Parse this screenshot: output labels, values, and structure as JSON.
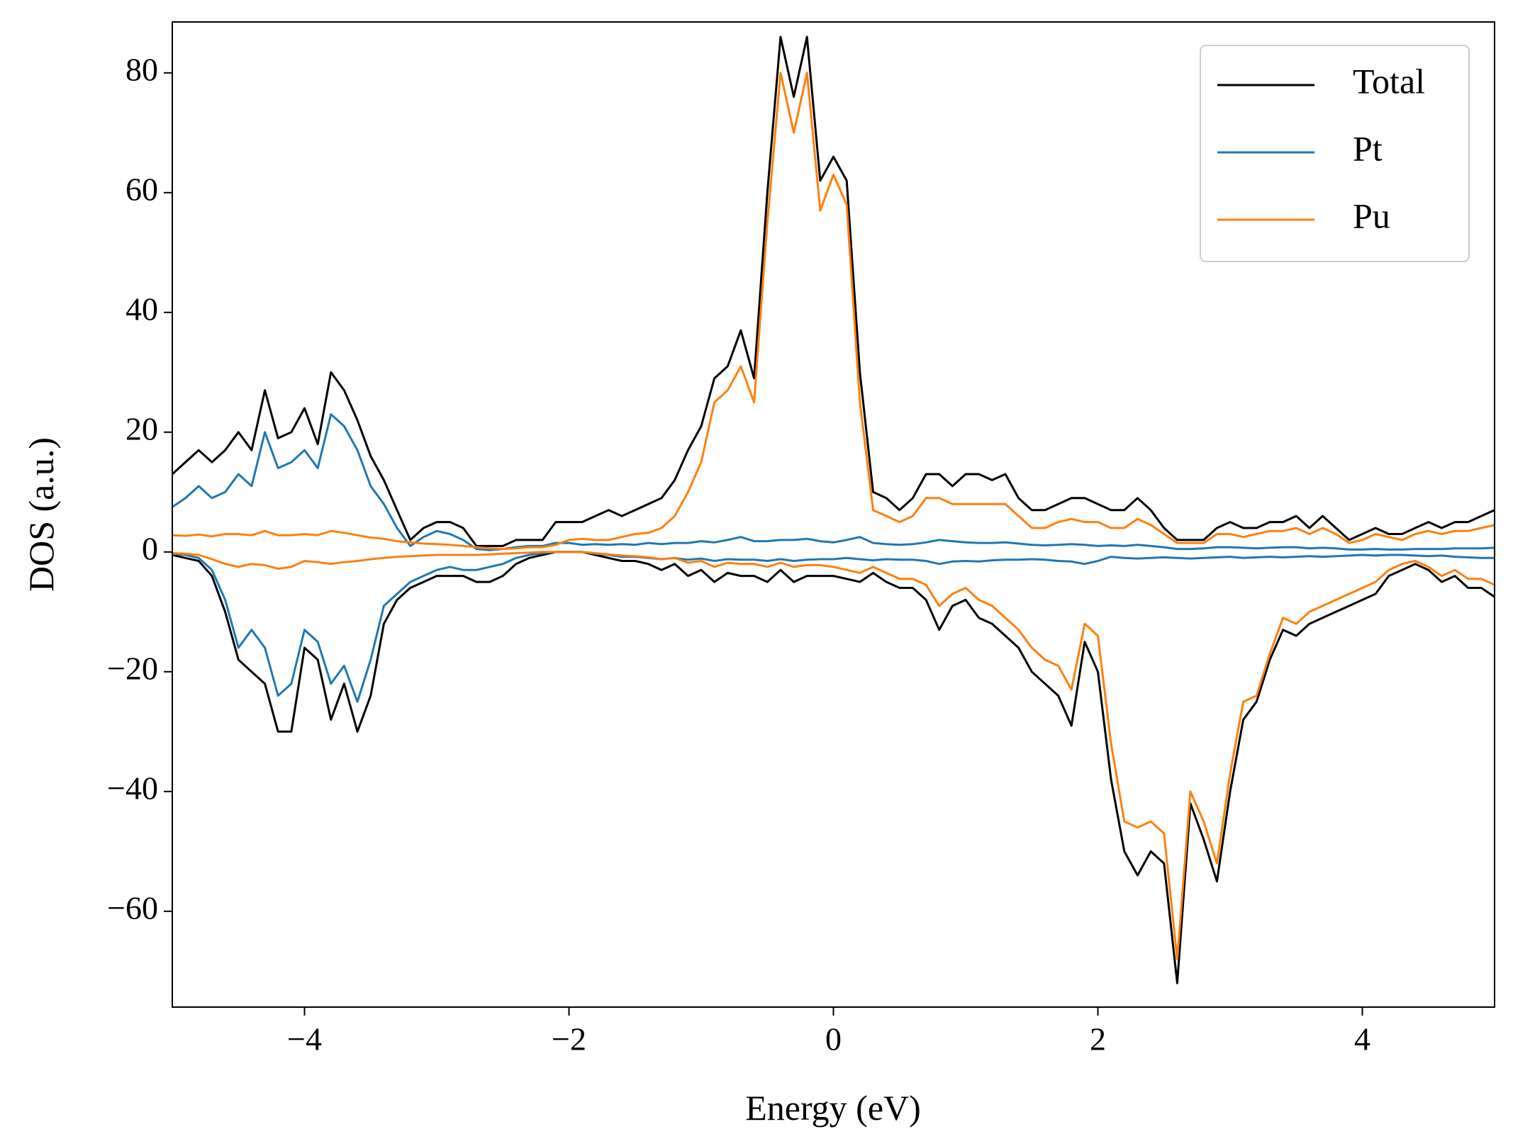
{
  "chart_data": {
    "type": "line",
    "x_label": "Energy (eV)",
    "y_label": "DOS (a.u.)",
    "x": [
      -5,
      -4.9,
      -4.8,
      -4.7,
      -4.6,
      -4.5,
      -4.4,
      -4.3,
      -4.2,
      -4.1,
      -4,
      -3.9,
      -3.8,
      -3.7,
      -3.6,
      -3.5,
      -3.4,
      -3.3,
      -3.2,
      -3.1,
      -3,
      -2.9,
      -2.8,
      -2.7,
      -2.6,
      -2.5,
      -2.4,
      -2.3,
      -2.2,
      -2.1,
      -2,
      -1.9,
      -1.8,
      -1.7,
      -1.6,
      -1.5,
      -1.4,
      -1.3,
      -1.2,
      -1.1,
      -1,
      -0.9,
      -0.8,
      -0.7,
      -0.6,
      -0.5,
      -0.4,
      -0.3,
      -0.2,
      -0.1,
      0,
      0.1,
      0.2,
      0.3,
      0.4,
      0.5,
      0.6,
      0.7,
      0.8,
      0.9,
      1,
      1.1,
      1.2,
      1.3,
      1.4,
      1.5,
      1.6,
      1.7,
      1.8,
      1.9,
      2,
      2.1,
      2.2,
      2.3,
      2.4,
      2.5,
      2.6,
      2.7,
      2.8,
      2.9,
      3,
      3.1,
      3.2,
      3.3,
      3.4,
      3.5,
      3.6,
      3.7,
      3.8,
      3.9,
      4,
      4.1,
      4.2,
      4.3,
      4.4,
      4.5,
      4.6,
      4.7,
      4.8,
      4.9,
      5
    ],
    "series": [
      {
        "name": "Total",
        "color": "#000000",
        "values": [
          13,
          15,
          17,
          15,
          17,
          20,
          17,
          27,
          19,
          20,
          24,
          18,
          30,
          27,
          22,
          16,
          12,
          7,
          2,
          4,
          5,
          5,
          4,
          1,
          1,
          1,
          2,
          2,
          2,
          5,
          5,
          5,
          6,
          7,
          6,
          7,
          8,
          9,
          12,
          17,
          21,
          29,
          31,
          37,
          29,
          60,
          86,
          76,
          86,
          62,
          66,
          62,
          30,
          10,
          9,
          7,
          9,
          13,
          13,
          11,
          13,
          13,
          12,
          13,
          9,
          7,
          7,
          8,
          9,
          9,
          8,
          7,
          7,
          9,
          7,
          4,
          2,
          2,
          2,
          4,
          5,
          4,
          4,
          5,
          5,
          6,
          4,
          6,
          4,
          2,
          3,
          4,
          3,
          3,
          4,
          5,
          4,
          5,
          5,
          6,
          7
        ],
        "values_down": [
          -0.5,
          -1,
          -1.5,
          -4,
          -10,
          -18,
          -20,
          -22,
          -30,
          -30,
          -16,
          -18,
          -28,
          -22,
          -30,
          -24,
          -12,
          -8,
          -6,
          -5,
          -4,
          -4,
          -4,
          -5,
          -5,
          -4,
          -2,
          -1,
          -0.5,
          0,
          0,
          0,
          -0.5,
          -1,
          -1.5,
          -1.5,
          -2,
          -3,
          -2,
          -4,
          -3,
          -5,
          -3.5,
          -4,
          -4,
          -5,
          -3,
          -5,
          -4,
          -4,
          -4,
          -4.5,
          -5,
          -3.5,
          -5,
          -6,
          -6,
          -8,
          -13,
          -9,
          -8,
          -11,
          -12,
          -14,
          -16,
          -20,
          -22,
          -24,
          -29,
          -15,
          -20,
          -38,
          -50,
          -54,
          -50,
          -52,
          -72,
          -42,
          -48,
          -55,
          -40,
          -28,
          -25,
          -18,
          -13,
          -14,
          -12,
          -11,
          -10,
          -9,
          -8,
          -7,
          -4,
          -3,
          -2,
          -3,
          -5,
          -4,
          -6,
          -6,
          -7.5
        ]
      },
      {
        "name": "Pt",
        "color": "#1f77b4",
        "values": [
          7.5,
          9,
          11,
          9,
          10,
          13,
          11,
          20,
          14,
          15,
          17,
          14,
          23,
          21,
          17,
          11,
          8,
          4,
          1,
          2.5,
          3.5,
          3,
          2,
          0.5,
          0.3,
          0.5,
          0.8,
          1,
          1,
          1.5,
          1.5,
          1.2,
          1.3,
          1.2,
          1.3,
          1.2,
          1.5,
          1.3,
          1.5,
          1.5,
          1.8,
          1.6,
          2,
          2.5,
          1.8,
          1.8,
          2,
          2,
          2.2,
          1.8,
          1.6,
          2,
          2.5,
          1.5,
          1.3,
          1.2,
          1.3,
          1.6,
          2,
          1.8,
          1.6,
          1.5,
          1.5,
          1.6,
          1.4,
          1.2,
          1.1,
          1.2,
          1.3,
          1.2,
          1,
          1.1,
          1,
          1.2,
          1,
          0.8,
          0.5,
          0.5,
          0.6,
          0.8,
          0.8,
          0.7,
          0.6,
          0.7,
          0.8,
          0.8,
          0.6,
          0.7,
          0.6,
          0.4,
          0.4,
          0.5,
          0.4,
          0.4,
          0.5,
          0.5,
          0.5,
          0.6,
          0.6,
          0.6,
          0.7
        ],
        "values_down": [
          -0.3,
          -0.5,
          -1,
          -3,
          -8,
          -16,
          -13,
          -16,
          -24,
          -22,
          -13,
          -15,
          -22,
          -19,
          -25,
          -18,
          -9,
          -7,
          -5,
          -4,
          -3,
          -2.5,
          -3,
          -3,
          -2.5,
          -2,
          -1,
          -0.5,
          -0.2,
          0,
          0,
          0,
          -0.3,
          -0.5,
          -0.8,
          -0.8,
          -1,
          -1.2,
          -1,
          -1.3,
          -1.1,
          -1.5,
          -1.2,
          -1.3,
          -1.3,
          -1.5,
          -1.2,
          -1.5,
          -1.3,
          -1.2,
          -1.2,
          -1,
          -1.2,
          -1.4,
          -1.2,
          -1.3,
          -1.3,
          -1.5,
          -2,
          -1.6,
          -1.5,
          -1.6,
          -1.4,
          -1.3,
          -1.3,
          -1.2,
          -1.3,
          -1.5,
          -1.6,
          -2,
          -1.5,
          -0.8,
          -1,
          -1.1,
          -1,
          -0.9,
          -1,
          -1.1,
          -1,
          -0.9,
          -0.8,
          -1,
          -0.9,
          -0.8,
          -0.9,
          -0.8,
          -0.7,
          -0.8,
          -0.7,
          -0.6,
          -0.5,
          -0.6,
          -0.5,
          -0.5,
          -0.6,
          -0.7,
          -0.6,
          -0.8,
          -0.9,
          -1,
          -1
        ]
      },
      {
        "name": "Pu",
        "color": "#ff7f0e",
        "values": [
          2.8,
          2.7,
          2.9,
          2.6,
          3,
          3,
          2.8,
          3.5,
          2.8,
          2.8,
          3,
          2.8,
          3.5,
          3.2,
          2.8,
          2.4,
          2.2,
          1.8,
          1.6,
          1.4,
          1.3,
          1.2,
          1,
          0.8,
          0.6,
          0.5,
          0.6,
          0.8,
          0.8,
          1.2,
          2,
          2.2,
          2,
          2,
          2.5,
          3,
          3.2,
          4,
          6,
          10,
          15,
          25,
          27,
          31,
          25,
          55,
          80,
          70,
          80,
          57,
          63,
          58,
          25,
          7,
          6,
          5,
          6,
          9,
          9,
          8,
          8,
          8,
          8,
          8,
          6,
          4,
          4,
          5,
          5.5,
          5,
          5,
          4,
          4,
          5.5,
          4.5,
          3,
          1.5,
          1.5,
          1.5,
          3,
          3,
          2.5,
          3,
          3.5,
          3.5,
          4,
          3,
          4,
          3,
          1.5,
          2,
          3,
          2.5,
          2,
          3,
          3.5,
          3,
          3.5,
          3.5,
          4,
          4.5
        ],
        "values_down": [
          -0.2,
          -0.3,
          -0.5,
          -1.2,
          -2,
          -2.5,
          -2,
          -2.2,
          -2.8,
          -2.5,
          -1.5,
          -1.7,
          -2,
          -1.7,
          -1.5,
          -1.2,
          -1,
          -0.8,
          -0.7,
          -0.6,
          -0.5,
          -0.5,
          -0.5,
          -0.5,
          -0.4,
          -0.3,
          -0.2,
          -0.1,
          0,
          0,
          0,
          0,
          -0.2,
          -0.4,
          -0.6,
          -0.7,
          -0.9,
          -1.2,
          -1,
          -1.8,
          -1.5,
          -2.5,
          -1.8,
          -2,
          -2,
          -2.5,
          -1.8,
          -2.5,
          -2.2,
          -2.2,
          -2.5,
          -3,
          -3.5,
          -2.5,
          -3.5,
          -4.5,
          -4.5,
          -5.5,
          -9,
          -7,
          -6,
          -8,
          -9,
          -11,
          -13,
          -16,
          -18,
          -19,
          -23,
          -12,
          -14,
          -32,
          -45,
          -46,
          -45,
          -47,
          -68,
          -40,
          -45,
          -52,
          -37,
          -25,
          -24,
          -17,
          -11,
          -12,
          -10,
          -9,
          -8,
          -7,
          -6,
          -5,
          -3,
          -2,
          -1.5,
          -2.5,
          -4,
          -3,
          -4.5,
          -4.5,
          -5.5
        ]
      }
    ],
    "xlim": [
      -5,
      5
    ],
    "ylim": [
      -76,
      88.5
    ],
    "xticks": [
      {
        "value": -4,
        "label": "−4"
      },
      {
        "value": -2,
        "label": "−2"
      },
      0,
      2,
      4
    ],
    "yticks": [
      {
        "value": -60,
        "label": "−60"
      },
      {
        "value": -40,
        "label": "−40"
      },
      {
        "value": -20,
        "label": "−20"
      },
      0,
      20,
      40,
      60,
      80
    ],
    "grid": false,
    "legend": "upper right"
  }
}
